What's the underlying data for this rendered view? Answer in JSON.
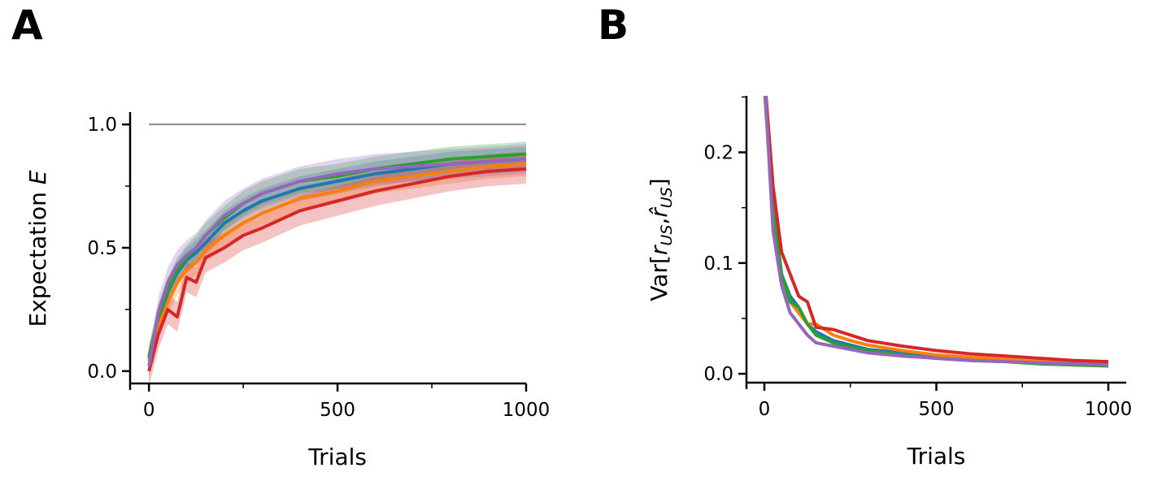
{
  "chart_data": [
    {
      "panel_label": "A",
      "type": "line",
      "xlabel": "Trials",
      "ylabel": "Expectation ",
      "ylabel_italic": "E",
      "xlim": [
        -50,
        1000
      ],
      "ylim": [
        -0.05,
        1.05
      ],
      "xticks": [
        0,
        500,
        1000
      ],
      "xtick_labels": [
        "0",
        "500",
        "1000"
      ],
      "xminor": [
        250,
        750
      ],
      "yticks": [
        0.0,
        0.5,
        1.0
      ],
      "ytick_labels": [
        "0.0",
        "0.5",
        "1.0"
      ],
      "yminor": [
        0.25,
        0.75
      ],
      "reference_line": {
        "y": 1.0,
        "color": "#888888"
      },
      "x": [
        0,
        25,
        50,
        75,
        100,
        125,
        150,
        200,
        250,
        300,
        400,
        500,
        600,
        700,
        800,
        900,
        1000
      ],
      "series": [
        {
          "color": "#1f77b4",
          "band": 0.05,
          "values": [
            0.05,
            0.2,
            0.32,
            0.4,
            0.45,
            0.48,
            0.52,
            0.6,
            0.65,
            0.69,
            0.74,
            0.77,
            0.8,
            0.82,
            0.84,
            0.85,
            0.86
          ]
        },
        {
          "color": "#ff7f0e",
          "band": 0.05,
          "values": [
            0.04,
            0.18,
            0.28,
            0.36,
            0.41,
            0.44,
            0.49,
            0.55,
            0.6,
            0.64,
            0.7,
            0.73,
            0.77,
            0.79,
            0.81,
            0.83,
            0.84
          ]
        },
        {
          "color": "#2ca02c",
          "band": 0.05,
          "values": [
            0.06,
            0.22,
            0.33,
            0.41,
            0.46,
            0.5,
            0.55,
            0.62,
            0.68,
            0.72,
            0.77,
            0.79,
            0.82,
            0.84,
            0.86,
            0.87,
            0.88
          ]
        },
        {
          "color": "#d62728",
          "band": 0.06,
          "values": [
            0.0,
            0.15,
            0.25,
            0.22,
            0.38,
            0.36,
            0.46,
            0.5,
            0.55,
            0.58,
            0.65,
            0.69,
            0.73,
            0.76,
            0.79,
            0.81,
            0.82
          ]
        },
        {
          "color": "#9467bd",
          "band": 0.06,
          "values": [
            0.02,
            0.24,
            0.36,
            0.43,
            0.47,
            0.5,
            0.55,
            0.63,
            0.68,
            0.72,
            0.77,
            0.8,
            0.82,
            0.83,
            0.84,
            0.85,
            0.86
          ]
        }
      ]
    },
    {
      "panel_label": "B",
      "type": "line",
      "xlabel": "Trials",
      "ylabel": "Var[r_US, r̂_US]",
      "xlim": [
        -52,
        1052
      ],
      "ylim": [
        -0.008,
        0.251
      ],
      "xticks": [
        0,
        500,
        1000
      ],
      "xtick_labels": [
        "0",
        "500",
        "1000"
      ],
      "xminor": [
        250,
        750
      ],
      "yticks": [
        0.0,
        0.1,
        0.2
      ],
      "ytick_labels": [
        "0.0",
        "0.1",
        "0.2"
      ],
      "yminor": [
        0.05,
        0.15,
        0.25
      ],
      "x": [
        0,
        25,
        50,
        75,
        100,
        125,
        150,
        200,
        250,
        300,
        400,
        500,
        600,
        700,
        800,
        900,
        1000
      ],
      "series": [
        {
          "color": "#1f77b4",
          "values": [
            0.26,
            0.15,
            0.09,
            0.07,
            0.06,
            0.045,
            0.038,
            0.03,
            0.026,
            0.022,
            0.019,
            0.016,
            0.014,
            0.012,
            0.011,
            0.009,
            0.008
          ]
        },
        {
          "color": "#ff7f0e",
          "values": [
            0.26,
            0.14,
            0.09,
            0.065,
            0.055,
            0.045,
            0.045,
            0.035,
            0.03,
            0.026,
            0.021,
            0.017,
            0.015,
            0.013,
            0.011,
            0.01,
            0.009
          ]
        },
        {
          "color": "#2ca02c",
          "values": [
            0.26,
            0.15,
            0.09,
            0.065,
            0.06,
            0.045,
            0.035,
            0.028,
            0.024,
            0.021,
            0.017,
            0.014,
            0.012,
            0.011,
            0.009,
            0.008,
            0.007
          ]
        },
        {
          "color": "#d62728",
          "values": [
            0.27,
            0.17,
            0.11,
            0.09,
            0.07,
            0.065,
            0.042,
            0.04,
            0.035,
            0.03,
            0.025,
            0.021,
            0.018,
            0.016,
            0.014,
            0.012,
            0.011
          ]
        },
        {
          "color": "#9467bd",
          "values": [
            0.27,
            0.13,
            0.08,
            0.055,
            0.045,
            0.035,
            0.028,
            0.025,
            0.022,
            0.019,
            0.016,
            0.014,
            0.012,
            0.011,
            0.01,
            0.009,
            0.008
          ]
        }
      ]
    }
  ]
}
